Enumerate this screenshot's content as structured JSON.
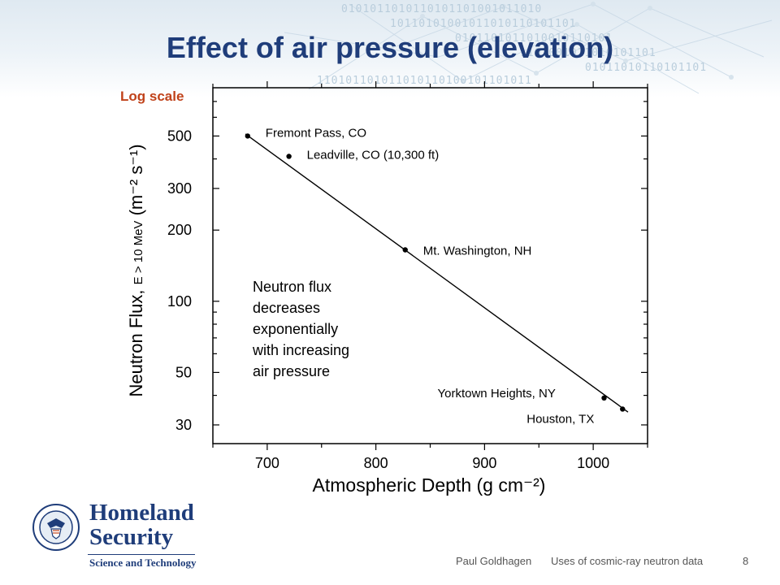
{
  "slide": {
    "title": "Effect of air pressure (elevation)",
    "log_scale_note": "Log scale",
    "annotation_lines": [
      "Neutron flux",
      "decreases",
      "exponentially",
      "with increasing",
      "air pressure"
    ],
    "logo": {
      "line1": "Homeland",
      "line2": "Security",
      "subline": "Science and Technology"
    },
    "footer": {
      "author": "Paul Goldhagen",
      "topic": "Uses of cosmic-ray neutron data",
      "page": "8"
    },
    "colors": {
      "title": "#1f3d7a",
      "log_scale_note": "#c0421a",
      "brand": "#1f3d7a"
    }
  },
  "chart_data": {
    "type": "scatter",
    "ylabel": {
      "main": "Neutron Flux,",
      "sub": "E > 10 MeV",
      "unit": "(m⁻² s⁻¹)"
    },
    "xlabel": "Atmospheric Depth  (g cm⁻²)",
    "xlim": [
      650,
      1050
    ],
    "ylim": [
      25,
      800
    ],
    "y_scale": "log",
    "x_ticks": [
      700,
      800,
      900,
      1000
    ],
    "y_ticks": [
      30,
      50,
      100,
      200,
      300,
      500
    ],
    "grid": false,
    "series": [
      {
        "points": [
          {
            "label": "Fremont Pass, CO",
            "x": 682,
            "y": 500
          },
          {
            "label": "Leadville, CO  (10,300 ft)",
            "x": 720,
            "y": 410
          },
          {
            "label": "Mt. Washington, NH",
            "x": 827,
            "y": 165
          },
          {
            "label": "Yorktown Heights, NY",
            "x": 1010,
            "y": 39
          },
          {
            "label": "Houston, TX",
            "x": 1027,
            "y": 35
          }
        ]
      }
    ],
    "fit_line": {
      "x": [
        680,
        1032
      ],
      "y": [
        510,
        34
      ]
    }
  }
}
